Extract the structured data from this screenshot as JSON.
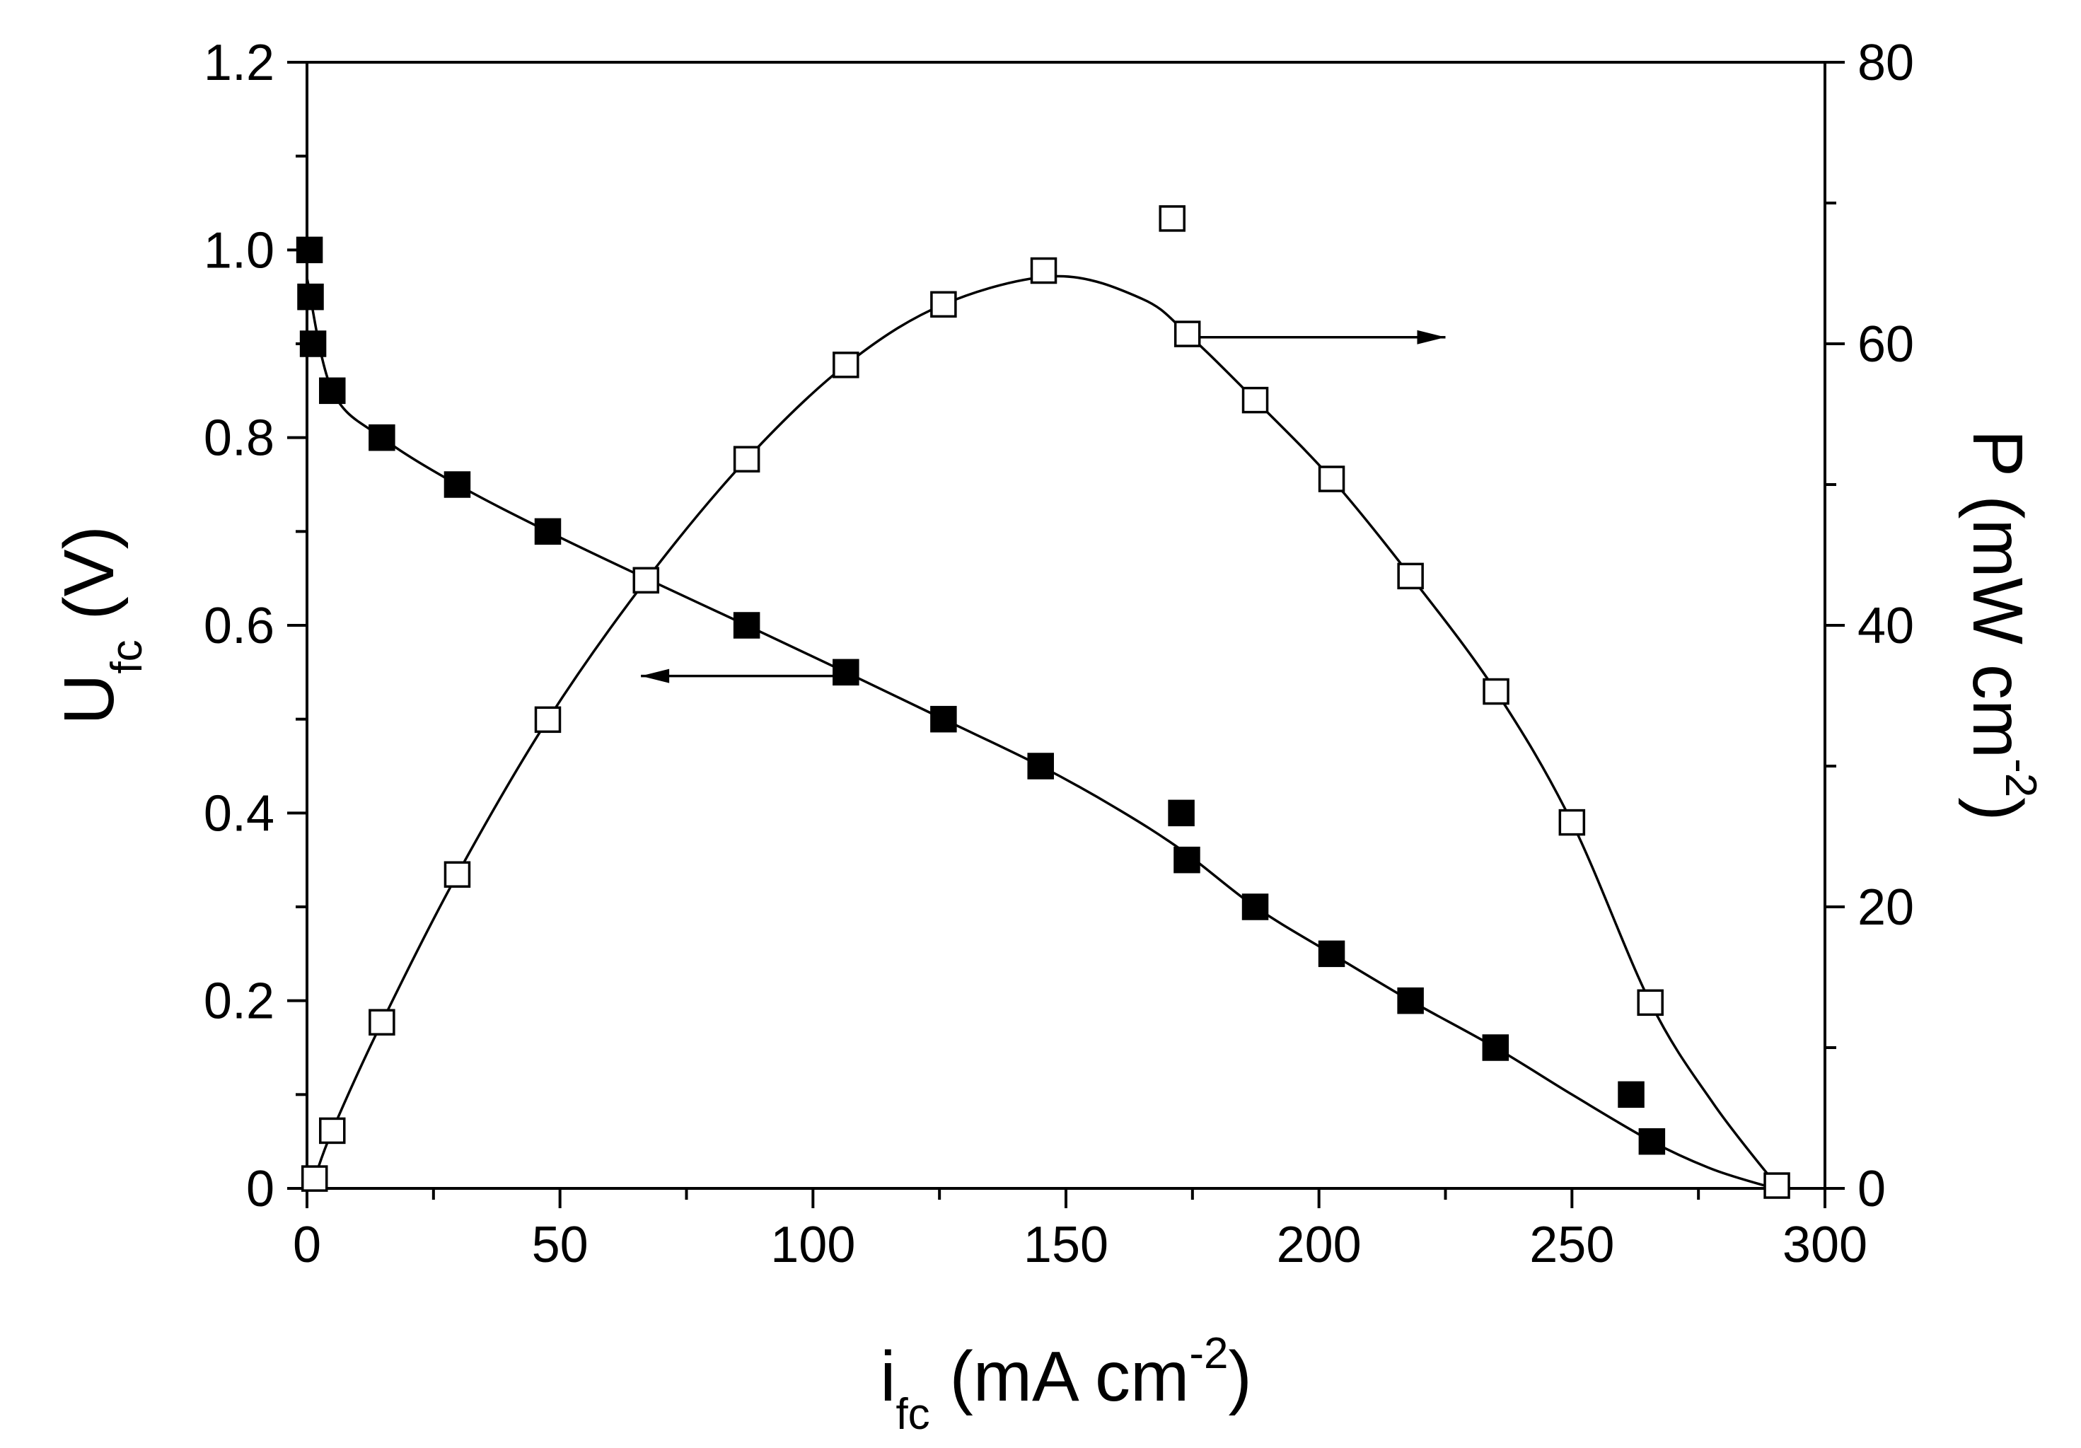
{
  "chart_data": {
    "type": "scatter",
    "title": "",
    "xlabel": {
      "base": "i",
      "sub": "fc",
      "unit": " (mA cm",
      "sup": "-2",
      "close": ")"
    },
    "ylabel": {
      "base": "U",
      "sub": "fc",
      "unit": " (V)"
    },
    "y2label": {
      "base": "P (mW cm",
      "sup": "-2",
      "close": ")"
    },
    "xlim": [
      0,
      300
    ],
    "ylim": [
      0,
      1.2
    ],
    "y2lim": [
      0,
      80
    ],
    "x_ticks": [
      "0",
      "50",
      "100",
      "150",
      "200",
      "250",
      "300"
    ],
    "y_ticks": [
      "0",
      "0.2",
      "0.4",
      "0.6",
      "0.8",
      "1.0",
      "1.2"
    ],
    "y2_ticks": [
      "0",
      "20",
      "40",
      "60",
      "80"
    ],
    "series": [
      {
        "name": "U_fc (V)",
        "axis": "left",
        "marker": "filled-square",
        "points": [
          [
            0.5,
            1.0
          ],
          [
            0.7,
            0.95
          ],
          [
            1.2,
            0.9
          ],
          [
            5,
            0.85
          ],
          [
            14.8,
            0.8
          ],
          [
            29.7,
            0.75
          ],
          [
            47.6,
            0.7
          ],
          [
            86.9,
            0.6
          ],
          [
            106.5,
            0.55
          ],
          [
            125.8,
            0.5
          ],
          [
            145,
            0.45
          ],
          [
            172.8,
            0.4
          ],
          [
            173.9,
            0.35
          ],
          [
            187.4,
            0.3
          ],
          [
            202.5,
            0.25
          ],
          [
            218.1,
            0.2
          ],
          [
            234.9,
            0.15
          ],
          [
            261.7,
            0.1
          ],
          [
            265.8,
            0.05
          ]
        ],
        "fit": [
          [
            0,
            0.97
          ],
          [
            5,
            0.85
          ],
          [
            14.8,
            0.8
          ],
          [
            29.7,
            0.75
          ],
          [
            47.6,
            0.7
          ],
          [
            67,
            0.65
          ],
          [
            86.9,
            0.6
          ],
          [
            106.5,
            0.55
          ],
          [
            125.8,
            0.5
          ],
          [
            145,
            0.45
          ],
          [
            160,
            0.405
          ],
          [
            173,
            0.36
          ],
          [
            187.4,
            0.3
          ],
          [
            202.5,
            0.25
          ],
          [
            218.1,
            0.2
          ],
          [
            234.9,
            0.15
          ],
          [
            250,
            0.1
          ],
          [
            265.8,
            0.05
          ],
          [
            278,
            0.02
          ],
          [
            290,
            0.0
          ]
        ]
      },
      {
        "name": "P (mW cm-2)",
        "axis": "right",
        "marker": "open-square",
        "points": [
          [
            1.5,
            0.7
          ],
          [
            5,
            4.1
          ],
          [
            14.8,
            11.8
          ],
          [
            29.7,
            22.3
          ],
          [
            47.6,
            33.3
          ],
          [
            67,
            43.2
          ],
          [
            86.9,
            51.8
          ],
          [
            106.5,
            58.5
          ],
          [
            125.8,
            62.8
          ],
          [
            145.6,
            65.2
          ],
          [
            171,
            68.9
          ],
          [
            174,
            60.7
          ],
          [
            187.4,
            56.0
          ],
          [
            202.5,
            50.4
          ],
          [
            218.1,
            43.5
          ],
          [
            235,
            35.3
          ],
          [
            250,
            26.0
          ],
          [
            265.5,
            13.2
          ],
          [
            290.5,
            0.2
          ]
        ],
        "fit": [
          [
            1.5,
            0.7
          ],
          [
            5,
            4.1
          ],
          [
            14.8,
            11.8
          ],
          [
            29.7,
            22.3
          ],
          [
            47.6,
            33.3
          ],
          [
            67,
            43.2
          ],
          [
            86.9,
            51.8
          ],
          [
            106.5,
            58.5
          ],
          [
            125.8,
            62.8
          ],
          [
            148,
            64.8
          ],
          [
            165,
            63.2
          ],
          [
            174,
            60.7
          ],
          [
            187.4,
            56.0
          ],
          [
            202.5,
            50.4
          ],
          [
            218.1,
            43.5
          ],
          [
            235,
            35.3
          ],
          [
            250,
            26.0
          ],
          [
            265.5,
            13.2
          ],
          [
            278,
            6.0
          ],
          [
            290.5,
            0.2
          ]
        ]
      }
    ],
    "annotations": [
      {
        "type": "arrow",
        "from": [
          176,
          0.907
        ],
        "to": [
          225,
          0.907
        ],
        "meaning": "points to right axis (P)"
      },
      {
        "type": "arrow",
        "from": [
          106,
          0.546
        ],
        "to": [
          66,
          0.546
        ],
        "meaning": "points to left axis (U_fc)"
      }
    ]
  }
}
